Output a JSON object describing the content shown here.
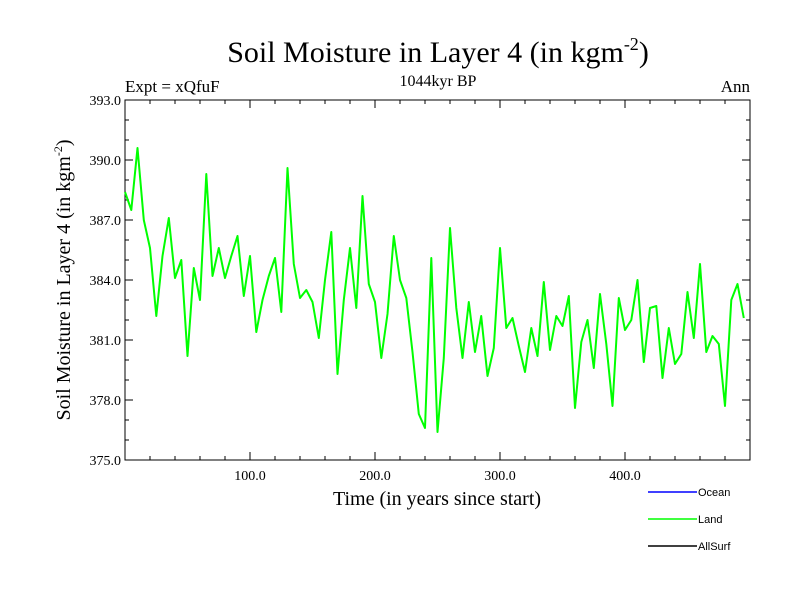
{
  "chart_data": {
    "type": "line",
    "title": "Soil Moisture in Layer 4 (in kgm",
    "title_sup": "-2",
    "title_close": ")",
    "subtitle": "1044kyr BP",
    "expt_label": "Expt = xQfuF",
    "season_label": "Ann",
    "xlabel": "Time (in years since start)",
    "ylabel": "Soil Moisture in Layer 4 (in kgm",
    "ylabel_sup": "-2",
    "ylabel_close": ")",
    "xlim": [
      0,
      500
    ],
    "ylim": [
      375.0,
      393.0
    ],
    "x_ticks": [
      100,
      200,
      300,
      400
    ],
    "x_tick_labels": [
      "100.0",
      "200.0",
      "300.0",
      "400.0"
    ],
    "y_ticks": [
      375,
      378,
      381,
      384,
      387,
      390,
      393
    ],
    "y_tick_labels": [
      "375.0",
      "378.0",
      "381.0",
      "384.0",
      "387.0",
      "390.0",
      "393.0"
    ],
    "legend": [
      {
        "name": "Ocean",
        "color": "#0000ff"
      },
      {
        "name": "Land",
        "color": "#00ff00"
      },
      {
        "name": "AllSurf",
        "color": "#000000"
      }
    ],
    "series": [
      {
        "name": "Land",
        "color": "#00ff00",
        "x_start": 0,
        "x_step": 5,
        "values": [
          388.4,
          387.5,
          390.6,
          387.0,
          385.6,
          382.2,
          385.2,
          387.1,
          384.1,
          385.0,
          380.2,
          384.6,
          383.0,
          389.3,
          384.2,
          385.6,
          384.1,
          385.2,
          386.2,
          383.2,
          385.2,
          381.4,
          383.0,
          384.2,
          385.1,
          382.4,
          389.6,
          384.8,
          383.1,
          383.5,
          382.9,
          381.1,
          384.0,
          386.4,
          379.3,
          383.0,
          385.6,
          382.6,
          388.2,
          383.8,
          382.9,
          380.1,
          382.3,
          386.2,
          384.0,
          383.1,
          380.4,
          377.3,
          376.6,
          385.1,
          376.4,
          380.1,
          386.6,
          382.6,
          380.1,
          382.9,
          380.4,
          382.2,
          379.2,
          380.6,
          385.6,
          381.6,
          382.1,
          380.7,
          379.4,
          381.6,
          380.2,
          383.9,
          380.5,
          382.2,
          381.7,
          383.2,
          377.6,
          380.9,
          382.0,
          379.6,
          383.3,
          380.8,
          377.7,
          383.1,
          381.5,
          382.0,
          384.0,
          379.9,
          382.6,
          382.7,
          379.1,
          381.6,
          379.8,
          380.3,
          383.4,
          381.1,
          384.8,
          380.4,
          381.2,
          380.8,
          377.7,
          383.0,
          383.8,
          382.1
        ]
      },
      {
        "name": "Ocean",
        "color": "#0000ff",
        "values": []
      },
      {
        "name": "AllSurf",
        "color": "#000000",
        "values": []
      }
    ]
  }
}
